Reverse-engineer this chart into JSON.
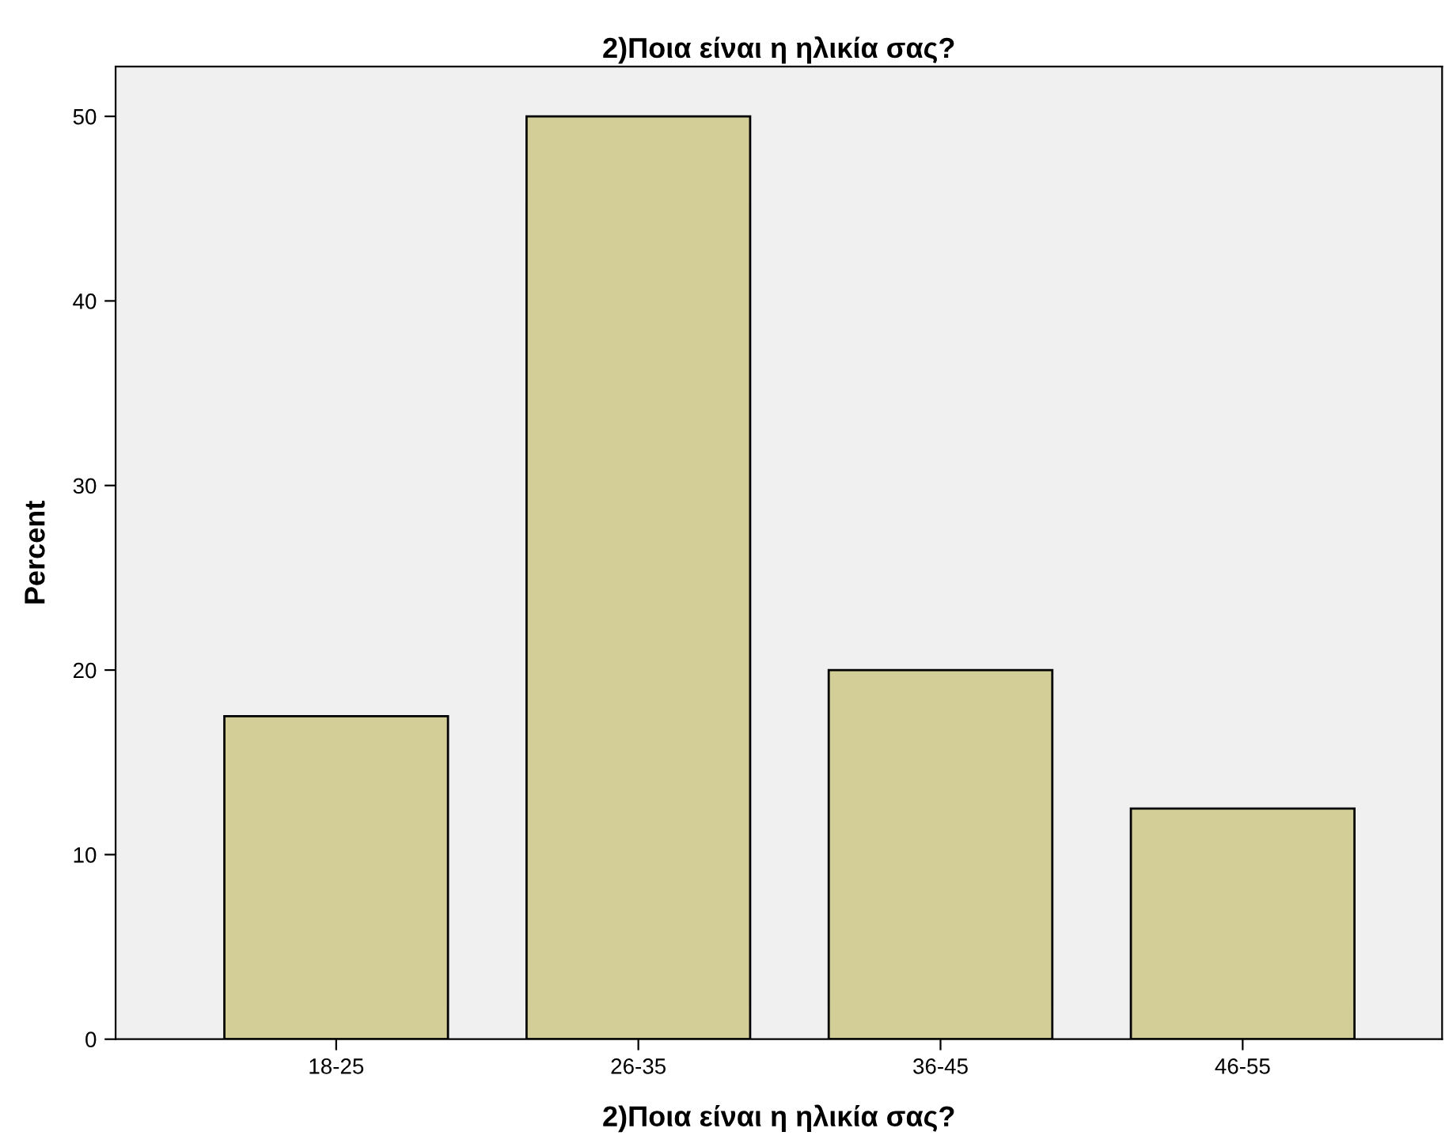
{
  "chart_data": {
    "type": "bar",
    "title": "2)Ποια είναι η ηλικία σας?",
    "xlabel": "2)Ποια είναι η ηλικία σας?",
    "ylabel": "Percent",
    "categories": [
      "18-25",
      "26-35",
      "36-45",
      "46-55"
    ],
    "values": [
      17.5,
      50,
      20,
      12.5
    ],
    "color": "#d3ce97",
    "ylim": [
      0,
      52.7
    ],
    "yticks": [
      0,
      10,
      20,
      30,
      40,
      50
    ],
    "grid": false
  }
}
